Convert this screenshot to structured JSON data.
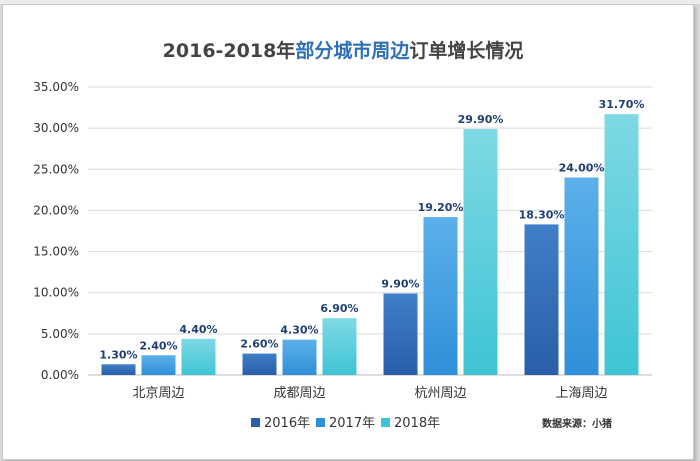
{
  "chart_data": {
    "type": "bar",
    "title": {
      "prefix": "2016-2018年",
      "highlight": "部分城市周边",
      "suffix": "订单增长情况"
    },
    "categories": [
      "北京周边",
      "成都周边",
      "杭州周边",
      "上海周边"
    ],
    "series": [
      {
        "name": "2016年",
        "values": [
          1.3,
          2.6,
          9.9,
          18.3
        ],
        "labels": [
          "1.30%",
          "2.60%",
          "9.90%",
          "18.30%"
        ],
        "color": "#2a5ea8",
        "color_light": "#3f7fc8"
      },
      {
        "name": "2017年",
        "values": [
          2.4,
          4.3,
          19.2,
          24.0
        ],
        "labels": [
          "2.40%",
          "4.30%",
          "19.20%",
          "24.00%"
        ],
        "color": "#2f8fd8",
        "color_light": "#5cb0ea"
      },
      {
        "name": "2018年",
        "values": [
          4.4,
          6.9,
          29.9,
          31.7
        ],
        "labels": [
          "4.40%",
          "6.90%",
          "29.90%",
          "31.70%"
        ],
        "color": "#3fc4d4",
        "color_light": "#7ed9e4"
      }
    ],
    "ylim": [
      0,
      35
    ],
    "ytick_labels": [
      "0.00%",
      "5.00%",
      "10.00%",
      "15.00%",
      "20.00%",
      "25.00%",
      "30.00%",
      "35.00%"
    ],
    "grid": true,
    "legend": "bottom",
    "source_note": "数据来源：小猪"
  },
  "colors": {
    "title_dark": "#444444",
    "title_accent": "#2f6fb6",
    "label_text": "#1f3f73",
    "grid": "#dcdcdc",
    "axis_text": "#333333"
  }
}
